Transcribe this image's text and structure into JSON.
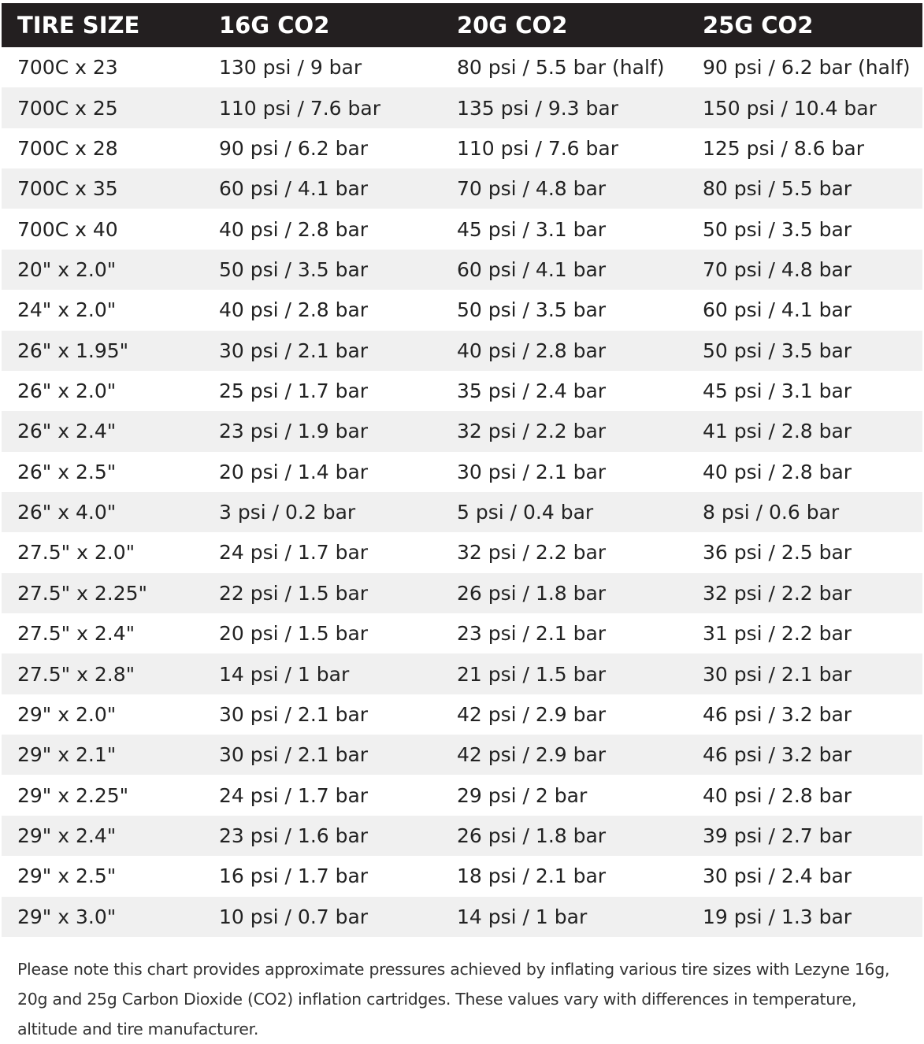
{
  "table": {
    "header": [
      "TIRE SIZE",
      "16G CO2",
      "20G CO2",
      "25G CO2"
    ],
    "rows": [
      [
        "700C x 23",
        "130 psi / 9 bar",
        "80 psi / 5.5 bar (half)",
        "90 psi / 6.2 bar (half)"
      ],
      [
        "700C x 25",
        "110 psi / 7.6 bar",
        "135 psi / 9.3 bar",
        "150 psi / 10.4 bar"
      ],
      [
        "700C x 28",
        "90 psi / 6.2 bar",
        "110 psi / 7.6 bar",
        "125 psi / 8.6 bar"
      ],
      [
        "700C x 35",
        "60 psi / 4.1 bar",
        "70 psi / 4.8 bar",
        "80 psi / 5.5 bar"
      ],
      [
        "700C x 40",
        "40 psi / 2.8 bar",
        "45 psi / 3.1 bar",
        "50 psi / 3.5 bar"
      ],
      [
        "20\" x 2.0\"",
        "50 psi / 3.5 bar",
        "60 psi / 4.1 bar",
        "70 psi / 4.8 bar"
      ],
      [
        "24\" x 2.0\"",
        "40 psi / 2.8 bar",
        "50 psi / 3.5 bar",
        "60 psi / 4.1 bar"
      ],
      [
        "26\" x 1.95\"",
        "30 psi / 2.1 bar",
        "40 psi / 2.8 bar",
        "50 psi / 3.5 bar"
      ],
      [
        "26\" x 2.0\"",
        "25 psi / 1.7 bar",
        "35 psi / 2.4 bar",
        "45 psi / 3.1 bar"
      ],
      [
        "26\" x 2.4\"",
        "23 psi / 1.9 bar",
        "32 psi / 2.2 bar",
        "41 psi / 2.8 bar"
      ],
      [
        "26\" x 2.5\"",
        "20 psi / 1.4 bar",
        "30 psi / 2.1 bar",
        "40 psi / 2.8 bar"
      ],
      [
        "26\" x 4.0\"",
        "3 psi / 0.2 bar",
        "5 psi / 0.4 bar",
        "8 psi / 0.6 bar"
      ],
      [
        "27.5\" x 2.0\"",
        "24 psi / 1.7 bar",
        "32 psi / 2.2 bar",
        "36 psi / 2.5 bar"
      ],
      [
        "27.5\" x 2.25\"",
        "22 psi / 1.5 bar",
        "26 psi / 1.8 bar",
        "32 psi / 2.2 bar"
      ],
      [
        "27.5\" x 2.4\"",
        "20 psi / 1.5 bar",
        "23 psi / 2.1 bar",
        "31 psi / 2.2 bar"
      ],
      [
        "27.5\" x 2.8\"",
        "14 psi / 1 bar",
        "21 psi / 1.5 bar",
        "30 psi / 2.1 bar"
      ],
      [
        "29\" x 2.0\"",
        "30 psi / 2.1 bar",
        "42 psi / 2.9 bar",
        "46 psi / 3.2 bar"
      ],
      [
        "29\" x 2.1\"",
        "30 psi / 2.1 bar",
        "42 psi / 2.9 bar",
        "46 psi / 3.2 bar"
      ],
      [
        "29\" x 2.25\"",
        "24 psi / 1.7 bar",
        "29 psi / 2 bar",
        "40 psi / 2.8 bar"
      ],
      [
        "29\" x 2.4\"",
        "23 psi / 1.6 bar",
        "26 psi / 1.8 bar",
        "39 psi / 2.7 bar"
      ],
      [
        "29\" x 2.5\"",
        "16 psi / 1.7 bar",
        "18 psi / 2.1 bar",
        "30 psi / 2.4 bar"
      ],
      [
        "29\" x 3.0\"",
        "10 psi / 0.7 bar",
        "14 psi / 1 bar",
        "19 psi / 1.3 bar"
      ]
    ]
  },
  "note": "Please note this chart provides approximate pressures achieved by inflating various tire sizes with Lezyne 16g, 20g and 25g Carbon Dioxide (CO2) inflation cartridges. These values vary with differences in temperature, altitude and tire manufacturer."
}
